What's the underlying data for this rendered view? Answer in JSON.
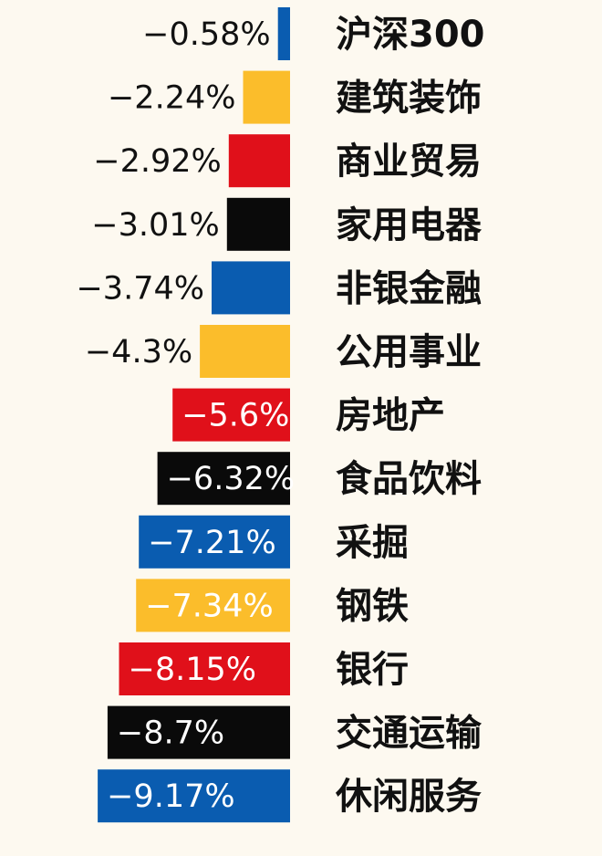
{
  "chart_data": {
    "type": "bar",
    "orientation": "horizontal",
    "categories": [
      "沪深300",
      "建筑装饰",
      "商业贸易",
      "家用电器",
      "非银金融",
      "公用事业",
      "房地产",
      "食品饮料",
      "采掘",
      "钢铁",
      "银行",
      "交通运输",
      "休闲服务"
    ],
    "values": [
      -0.58,
      -2.24,
      -2.92,
      -3.01,
      -3.74,
      -4.3,
      -5.6,
      -6.32,
      -7.21,
      -7.34,
      -8.15,
      -8.7,
      -9.17
    ],
    "labels": [
      "−0.58%",
      "−2.24%",
      "−2.92%",
      "−3.01%",
      "−3.74%",
      "−4.3%",
      "−5.6%",
      "−6.32%",
      "−7.21%",
      "−7.34%",
      "−8.15%",
      "−8.7%",
      "−9.17%"
    ],
    "bar_colors": [
      "#0a5cb0",
      "#fbbd2b",
      "#e0101a",
      "#0a0a0a",
      "#0a5cb0",
      "#fbbd2b",
      "#e0101a",
      "#0a0a0a",
      "#0a5cb0",
      "#fbbd2b",
      "#e0101a",
      "#0a0a0a",
      "#0a5cb0"
    ],
    "label_inside_colors": "#ffffff",
    "label_outside_colors": "#111111",
    "background": "#fdf9f0",
    "grid": false,
    "legend": "none",
    "title": "",
    "xlabel": "",
    "ylabel": ""
  }
}
